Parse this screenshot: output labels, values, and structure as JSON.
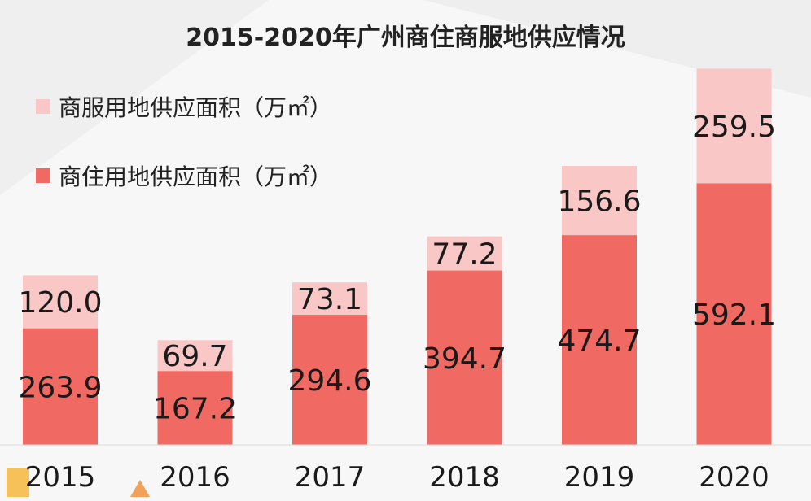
{
  "chart_data": {
    "type": "bar",
    "stacked": true,
    "title": "2015-2020年广州商住商服地供应情况",
    "categories": [
      "2015",
      "2016",
      "2017",
      "2018",
      "2019",
      "2020"
    ],
    "series": [
      {
        "name": "商住用地供应面积（万㎡）",
        "values": [
          263.9,
          167.2,
          294.6,
          394.7,
          474.7,
          592.1
        ],
        "labels": [
          "263.9",
          "167.2",
          "294.6",
          "394.7",
          "474.7",
          "592.1"
        ],
        "color": "#f06a63"
      },
      {
        "name": "商服用地供应面积（万㎡）",
        "values": [
          120.0,
          69.7,
          73.1,
          77.2,
          156.6,
          259.5
        ],
        "labels": [
          "120.0",
          "69.7",
          "73.1",
          "77.2",
          "156.6",
          "259.5"
        ],
        "color": "#f9c8c6"
      }
    ],
    "legend_position": "top-left",
    "grid": false,
    "ylim": [
      0,
      900
    ]
  }
}
